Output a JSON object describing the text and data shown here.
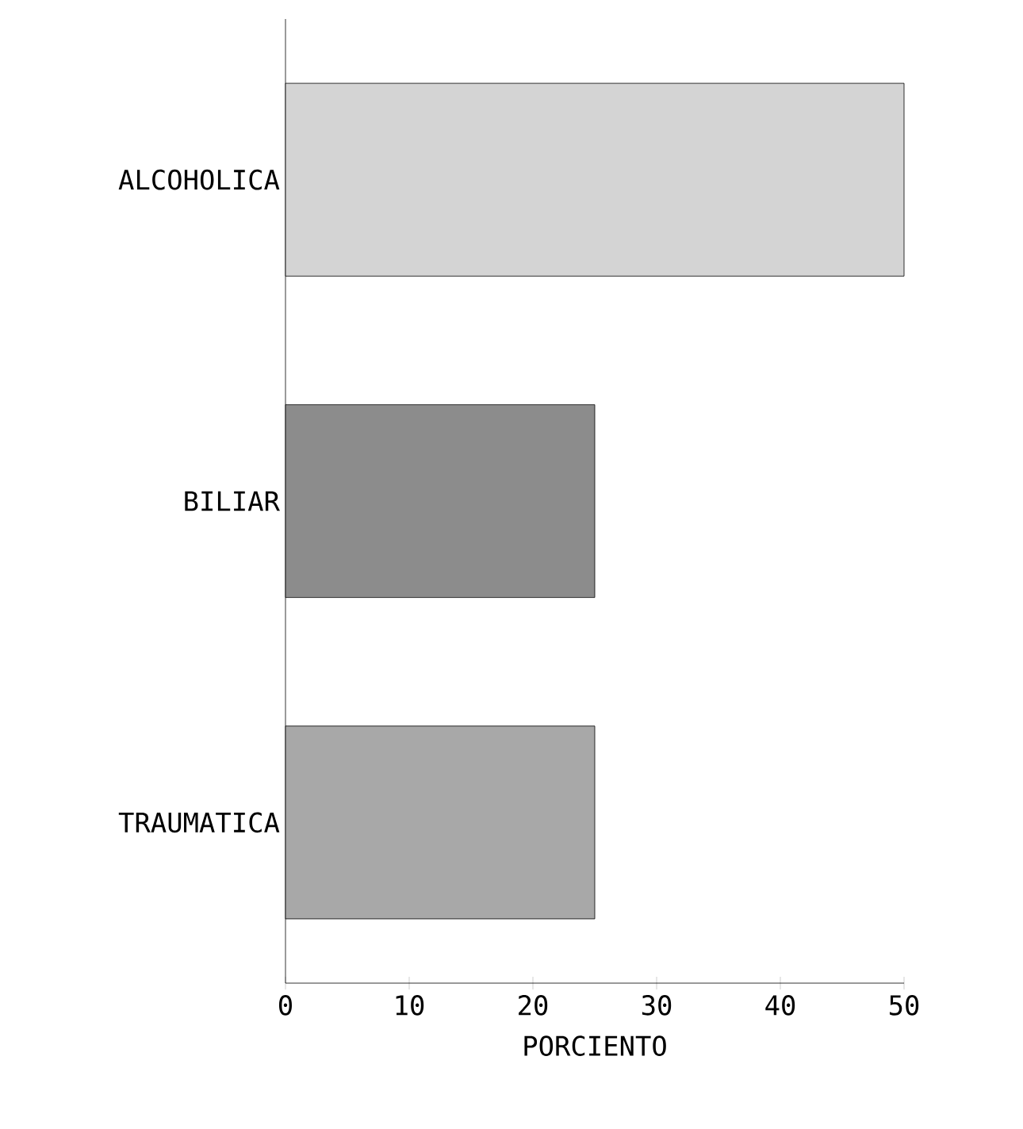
{
  "chart_data": {
    "type": "bar",
    "orientation": "horizontal",
    "xlabel": "PORCIENTO",
    "categories": [
      "ALCOHOLICA",
      "BILIAR",
      "TRAUMATICA"
    ],
    "values": [
      50,
      25,
      25
    ],
    "colors": [
      "#d4d4d4",
      "#8c8c8c",
      "#a8a8a8"
    ],
    "xlim": [
      0,
      50
    ],
    "xticks": [
      0,
      10,
      20,
      30,
      40,
      50
    ]
  }
}
